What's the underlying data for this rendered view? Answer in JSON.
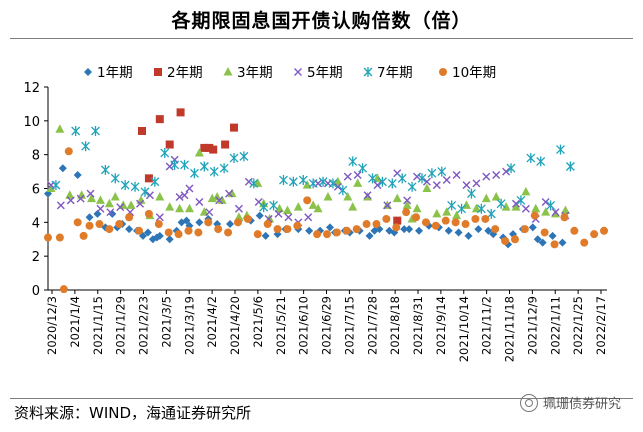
{
  "chart_data": {
    "type": "scatter",
    "title": "各期限固息国开债认购倍数（倍）",
    "xlabel": "",
    "ylabel": "",
    "ylim": [
      0,
      12
    ],
    "yticks": [
      0,
      2,
      4,
      6,
      8,
      10,
      12
    ],
    "x_start": "2020/12/3",
    "x_end": "2022/2/17",
    "xtick_labels": [
      "2020/12/3",
      "2021/1/4",
      "2021/1/15",
      "2021/1/29",
      "2021/2/23",
      "2021/3/5",
      "2021/3/19",
      "2021/4/2",
      "2021/4/20",
      "2021/5/6",
      "2021/5/21",
      "2021/6/10",
      "2021/6/29",
      "2021/7/15",
      "2021/7/28",
      "2021/8/18",
      "2021/8/31",
      "2021/9/14",
      "2021/10/14",
      "2021/11/2",
      "2021/11/18",
      "2021/12/9",
      "2022/1/11",
      "2022/1/25",
      "2022/2/17"
    ],
    "legend_position": "top",
    "series": [
      {
        "name": "1年期",
        "marker": "diamond",
        "color": "#2E75B6",
        "points": [
          [
            0,
            5.7
          ],
          [
            1.5,
            7.2
          ],
          [
            3,
            6.8
          ],
          [
            4.2,
            4.3
          ],
          [
            5,
            4.5
          ],
          [
            5.8,
            3.7
          ],
          [
            6.5,
            4.5
          ],
          [
            7,
            3.7
          ],
          [
            7.5,
            3.9
          ],
          [
            8.2,
            3.6
          ],
          [
            9,
            3.5
          ],
          [
            9.6,
            3.2
          ],
          [
            10.1,
            3.4
          ],
          [
            10.6,
            3.0
          ],
          [
            11,
            3.1
          ],
          [
            11.3,
            3.2
          ],
          [
            12.3,
            3.0
          ],
          [
            13,
            3.5
          ],
          [
            13.5,
            4.0
          ],
          [
            14,
            4.1
          ],
          [
            14.3,
            3.8
          ],
          [
            15.3,
            4.0
          ],
          [
            16.2,
            4.2
          ],
          [
            17.1,
            3.9
          ],
          [
            18.4,
            3.9
          ],
          [
            19.3,
            4.1
          ],
          [
            20.5,
            4.1
          ],
          [
            21.4,
            4.4
          ],
          [
            22,
            3.2
          ],
          [
            23.2,
            3.3
          ],
          [
            24,
            3.6
          ],
          [
            25.3,
            3.6
          ],
          [
            26.4,
            3.5
          ],
          [
            27.5,
            3.5
          ],
          [
            28.5,
            3.7
          ],
          [
            29,
            3.4
          ],
          [
            30,
            3.5
          ],
          [
            30.5,
            3.4
          ],
          [
            31.5,
            3.5
          ],
          [
            32.5,
            3.2
          ],
          [
            33,
            3.5
          ],
          [
            33.5,
            3.6
          ],
          [
            34.5,
            3.5
          ],
          [
            35,
            3.4
          ],
          [
            36,
            3.6
          ],
          [
            36.5,
            3.6
          ],
          [
            37.5,
            3.5
          ],
          [
            38.5,
            3.8
          ],
          [
            39.5,
            3.7
          ],
          [
            40.5,
            3.5
          ],
          [
            41.5,
            3.4
          ],
          [
            42.5,
            3.2
          ],
          [
            43.5,
            3.6
          ],
          [
            44.5,
            3.5
          ],
          [
            45,
            3.3
          ],
          [
            46,
            3.1
          ],
          [
            46.5,
            2.7
          ],
          [
            47,
            3.3
          ],
          [
            48,
            3.6
          ],
          [
            49,
            3.7
          ],
          [
            49.5,
            3.0
          ],
          [
            50,
            2.8
          ],
          [
            51,
            3.2
          ],
          [
            52,
            2.8
          ]
        ]
      },
      {
        "name": "2年期",
        "marker": "square",
        "color": "#C0392B",
        "points": [
          [
            9.5,
            9.4
          ],
          [
            10.2,
            6.6
          ],
          [
            11.3,
            10.1
          ],
          [
            12.3,
            8.6
          ],
          [
            13.4,
            10.5
          ],
          [
            15.8,
            8.4
          ],
          [
            16.3,
            8.4
          ],
          [
            16.7,
            8.3
          ],
          [
            17.9,
            8.6
          ],
          [
            18.8,
            9.6
          ],
          [
            35.3,
            4.1
          ]
        ]
      },
      {
        "name": "3年期",
        "marker": "triangle",
        "color": "#8BC34A",
        "points": [
          [
            0.3,
            6.0
          ],
          [
            1.2,
            9.5
          ],
          [
            2.2,
            5.6
          ],
          [
            3.4,
            5.6
          ],
          [
            4.4,
            5.4
          ],
          [
            5.3,
            5.3
          ],
          [
            6.2,
            5.1
          ],
          [
            6.8,
            5.5
          ],
          [
            7.6,
            5.0
          ],
          [
            8.4,
            5.0
          ],
          [
            9.4,
            5.3
          ],
          [
            10.3,
            4.4
          ],
          [
            11.3,
            5.5
          ],
          [
            12.3,
            4.9
          ],
          [
            13.3,
            4.8
          ],
          [
            14.3,
            4.8
          ],
          [
            15.3,
            8.1
          ],
          [
            15.8,
            4.6
          ],
          [
            16.6,
            5.4
          ],
          [
            17.1,
            5.5
          ],
          [
            17.6,
            5.3
          ],
          [
            18.6,
            5.7
          ],
          [
            19.3,
            4.3
          ],
          [
            20.1,
            4.4
          ],
          [
            21.2,
            6.3
          ],
          [
            22.4,
            4.2
          ],
          [
            23.4,
            4.8
          ],
          [
            24.2,
            4.7
          ],
          [
            25.3,
            4.9
          ],
          [
            26.2,
            6.2
          ],
          [
            27.3,
            4.8
          ],
          [
            28.3,
            5.5
          ],
          [
            29.3,
            6.4
          ],
          [
            30.3,
            5.5
          ],
          [
            31.3,
            6.3
          ],
          [
            32.3,
            5.5
          ],
          [
            33.3,
            6.6
          ],
          [
            34.3,
            5.0
          ],
          [
            35.3,
            5.4
          ],
          [
            36.3,
            5.0
          ],
          [
            37.3,
            4.8
          ],
          [
            38.3,
            6.0
          ],
          [
            39.3,
            4.5
          ],
          [
            40.3,
            4.6
          ],
          [
            41.3,
            4.4
          ],
          [
            42.3,
            5.0
          ],
          [
            43.3,
            4.8
          ],
          [
            44.3,
            5.4
          ],
          [
            45.3,
            5.5
          ],
          [
            46.3,
            4.9
          ],
          [
            47.3,
            4.9
          ],
          [
            48.3,
            5.8
          ],
          [
            49.3,
            4.8
          ],
          [
            50.3,
            4.6
          ],
          [
            51.3,
            4.5
          ],
          [
            52.3,
            4.7
          ],
          [
            30.8,
            4.9
          ],
          [
            36.8,
            4.2
          ],
          [
            21.8,
            5.1
          ],
          [
            26.8,
            5.0
          ]
        ]
      },
      {
        "name": "5年期",
        "marker": "x",
        "color": "#7E57C2",
        "points": [
          [
            0.3,
            6.2
          ],
          [
            1.3,
            5.0
          ],
          [
            2.3,
            5.3
          ],
          [
            3.3,
            5.4
          ],
          [
            4.3,
            5.7
          ],
          [
            5.3,
            4.8
          ],
          [
            6.3,
            4.6
          ],
          [
            7.3,
            4.9
          ],
          [
            8.3,
            4.6
          ],
          [
            9.3,
            5.1
          ],
          [
            10.3,
            5.6
          ],
          [
            11.3,
            4.3
          ],
          [
            12.3,
            7.3
          ],
          [
            12.8,
            7.7
          ],
          [
            13.3,
            5.5
          ],
          [
            13.8,
            5.6
          ],
          [
            14.3,
            6.0
          ],
          [
            15.3,
            5.2
          ],
          [
            16.3,
            4.6
          ],
          [
            17.3,
            5.3
          ],
          [
            18.3,
            5.7
          ],
          [
            19.3,
            4.8
          ],
          [
            20.3,
            6.4
          ],
          [
            21.3,
            5.2
          ],
          [
            22.3,
            4.2
          ],
          [
            23.3,
            4.5
          ],
          [
            24.3,
            4.3
          ],
          [
            25.3,
            4.0
          ],
          [
            26.3,
            4.3
          ],
          [
            27.3,
            6.3
          ],
          [
            28.3,
            6.3
          ],
          [
            29.3,
            6.1
          ],
          [
            30.3,
            6.7
          ],
          [
            31.3,
            6.8
          ],
          [
            32.3,
            5.6
          ],
          [
            33.3,
            6.2
          ],
          [
            34.3,
            5.0
          ],
          [
            35.3,
            6.9
          ],
          [
            36.3,
            5.3
          ],
          [
            37.3,
            6.7
          ],
          [
            38.3,
            6.4
          ],
          [
            39.3,
            6.2
          ],
          [
            40.3,
            6.5
          ],
          [
            41.3,
            6.8
          ],
          [
            42.3,
            6.2
          ],
          [
            43.3,
            6.3
          ],
          [
            44.3,
            6.7
          ],
          [
            45.3,
            6.8
          ],
          [
            46.3,
            7.0
          ],
          [
            47.3,
            5.1
          ],
          [
            48.3,
            4.8
          ],
          [
            49.3,
            4.2
          ],
          [
            50.3,
            5.2
          ],
          [
            51.3,
            4.6
          ],
          [
            52.3,
            4.4
          ]
        ]
      },
      {
        "name": "7年期",
        "marker": "star",
        "color": "#1FA3B8",
        "points": [
          [
            0.8,
            6.2
          ],
          [
            2.8,
            9.4
          ],
          [
            3.8,
            8.5
          ],
          [
            4.8,
            9.4
          ],
          [
            5.8,
            7.1
          ],
          [
            6.8,
            6.6
          ],
          [
            7.8,
            6.2
          ],
          [
            8.8,
            6.1
          ],
          [
            9.8,
            5.8
          ],
          [
            10.8,
            6.4
          ],
          [
            11.8,
            8.1
          ],
          [
            12.8,
            7.4
          ],
          [
            13.8,
            7.4
          ],
          [
            14.8,
            6.9
          ],
          [
            15.8,
            7.3
          ],
          [
            16.8,
            7.0
          ],
          [
            17.8,
            7.2
          ],
          [
            18.8,
            7.8
          ],
          [
            19.8,
            7.9
          ],
          [
            20.8,
            6.3
          ],
          [
            21.8,
            4.9
          ],
          [
            22.8,
            5.0
          ],
          [
            23.8,
            6.5
          ],
          [
            24.8,
            6.4
          ],
          [
            25.8,
            6.5
          ],
          [
            26.8,
            6.3
          ],
          [
            27.8,
            6.4
          ],
          [
            28.8,
            6.3
          ],
          [
            29.8,
            5.9
          ],
          [
            30.8,
            7.6
          ],
          [
            31.8,
            7.2
          ],
          [
            32.8,
            6.6
          ],
          [
            33.8,
            6.4
          ],
          [
            34.8,
            6.3
          ],
          [
            35.8,
            6.6
          ],
          [
            36.8,
            6.1
          ],
          [
            37.8,
            6.6
          ],
          [
            38.8,
            6.9
          ],
          [
            39.8,
            7.0
          ],
          [
            40.8,
            5.0
          ],
          [
            41.8,
            4.8
          ],
          [
            42.8,
            5.7
          ],
          [
            43.8,
            4.8
          ],
          [
            44.8,
            4.5
          ],
          [
            45.8,
            5.1
          ],
          [
            46.8,
            7.2
          ],
          [
            47.8,
            5.3
          ],
          [
            48.8,
            7.8
          ],
          [
            49.8,
            7.6
          ],
          [
            50.8,
            5.0
          ],
          [
            51.8,
            8.3
          ],
          [
            52.8,
            7.3
          ]
        ]
      },
      {
        "name": "10年期",
        "marker": "circle",
        "color": "#E07B2A",
        "points": [
          [
            0,
            3.1
          ],
          [
            1.2,
            3.1
          ],
          [
            1.6,
            0.05
          ],
          [
            2.1,
            8.2
          ],
          [
            3,
            4.0
          ],
          [
            3.6,
            3.2
          ],
          [
            4.2,
            3.8
          ],
          [
            5.2,
            3.9
          ],
          [
            6.2,
            3.6
          ],
          [
            7.2,
            3.9
          ],
          [
            8.2,
            4.3
          ],
          [
            9.2,
            3.5
          ],
          [
            10.2,
            4.5
          ],
          [
            11.2,
            3.9
          ],
          [
            12.2,
            3.4
          ],
          [
            13.2,
            3.3
          ],
          [
            14.2,
            3.5
          ],
          [
            15.2,
            3.4
          ],
          [
            16.2,
            4.0
          ],
          [
            17.2,
            3.6
          ],
          [
            18.2,
            3.4
          ],
          [
            19.2,
            4.0
          ],
          [
            20.2,
            4.2
          ],
          [
            21.2,
            3.3
          ],
          [
            22.2,
            3.9
          ],
          [
            23.2,
            3.6
          ],
          [
            24.2,
            3.6
          ],
          [
            25.2,
            3.8
          ],
          [
            26.2,
            5.3
          ],
          [
            27.2,
            3.3
          ],
          [
            28.2,
            3.3
          ],
          [
            29.2,
            3.4
          ],
          [
            30.2,
            3.5
          ],
          [
            31.2,
            3.6
          ],
          [
            32.2,
            3.9
          ],
          [
            33.2,
            3.9
          ],
          [
            34.2,
            4.2
          ],
          [
            35.2,
            3.7
          ],
          [
            36.2,
            4.6
          ],
          [
            37.2,
            4.3
          ],
          [
            38.2,
            4.0
          ],
          [
            39.2,
            3.8
          ],
          [
            40.2,
            4.1
          ],
          [
            41.2,
            4.0
          ],
          [
            42.2,
            3.9
          ],
          [
            43.2,
            4.2
          ],
          [
            44.2,
            4.2
          ],
          [
            45.2,
            3.6
          ],
          [
            46.2,
            2.9
          ],
          [
            47.2,
            3.0
          ],
          [
            48.2,
            3.6
          ],
          [
            49.2,
            4.4
          ],
          [
            50.2,
            3.4
          ],
          [
            51.2,
            2.7
          ],
          [
            52.2,
            4.3
          ],
          [
            53.2,
            3.5
          ],
          [
            54.2,
            2.8
          ],
          [
            55.2,
            3.3
          ],
          [
            56.2,
            3.5
          ]
        ]
      }
    ]
  },
  "footer": {
    "source": "资料来源：WIND，海通证券研究所",
    "brand": "珮珊债券研究"
  }
}
